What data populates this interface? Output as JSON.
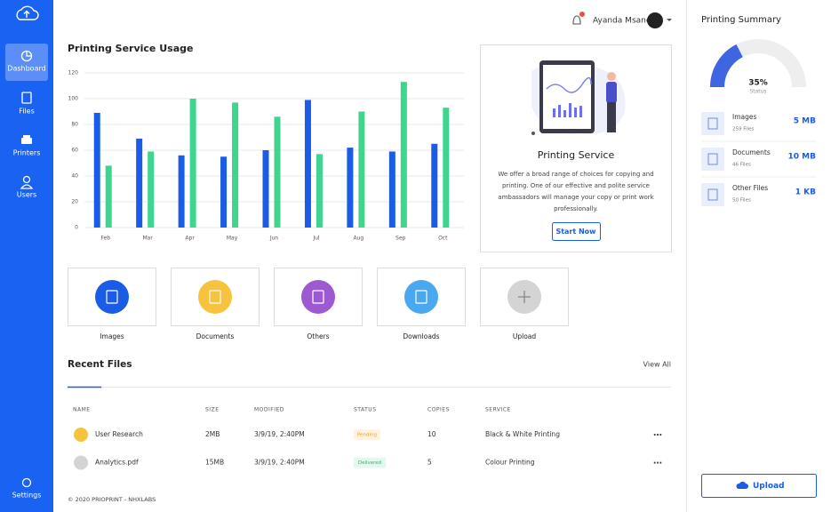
{
  "sidebar": {
    "nav": [
      "Dashboard",
      "Files",
      "Printers",
      "Users"
    ],
    "settings": "Settings"
  },
  "header": {
    "user": "Ayanda Msane"
  },
  "chart_data": {
    "type": "bar",
    "title": "Printing Service Usage",
    "categories": [
      "Feb",
      "Mar",
      "Apr",
      "May",
      "Jun",
      "Jul",
      "Aug",
      "Sep",
      "Oct"
    ],
    "series": [
      {
        "color": "#1a5ce6",
        "values": [
          89,
          69,
          56,
          55,
          60,
          99,
          62,
          59,
          65
        ]
      },
      {
        "color": "#3ed68f",
        "values": [
          48,
          59,
          100,
          97,
          86,
          57,
          90,
          113,
          93
        ]
      }
    ],
    "ylim": [
      0,
      120
    ],
    "yticks": [
      0,
      20,
      40,
      60,
      80,
      100,
      120
    ],
    "grid": true
  },
  "service_card": {
    "title": "Printing Service",
    "description_lines": [
      "We offer a broad range of choices for copying and",
      "printing. One of our effective and polite service",
      "ambassadors will manage your copy or print work",
      "professionally."
    ],
    "button": "Start Now"
  },
  "tiles": [
    "Images",
    "Documents",
    "Others",
    "Downloads",
    "Upload"
  ],
  "recent_files": {
    "title": "Recent Files",
    "view_all": "View All",
    "columns": [
      "NAME",
      "SIZE",
      "MODIFIED",
      "STATUS",
      "COPIES",
      "SERVICE"
    ],
    "rows": [
      [
        "User Research",
        "2MB",
        "3/9/19, 2:40PM",
        "Pending",
        10,
        "Black & White Printing"
      ],
      [
        "Analytics.pdf",
        "15MB",
        "3/9/19, 2:40PM",
        "Delivered",
        5,
        "Colour Printing"
      ]
    ]
  },
  "footer": "© 2020 PRIOPRINT - NHXLABS",
  "summary": {
    "title": "Printing Summary",
    "gauge": {
      "value": 35,
      "value_label": "35%",
      "caption": "Status"
    },
    "items": [
      {
        "name": "Images",
        "count": "259 Files",
        "size": "5 MB"
      },
      {
        "name": "Documents",
        "count": "46 Files",
        "size": "10 MB"
      },
      {
        "name": "Other Files",
        "count": "50 Files",
        "size": "1 KB"
      }
    ],
    "button": "Upload"
  }
}
